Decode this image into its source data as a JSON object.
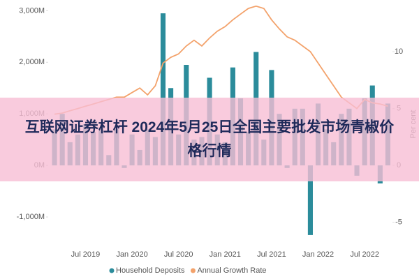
{
  "chart_data": {
    "type": "bar",
    "categories": [
      null,
      null,
      null,
      null,
      "Jul 2019",
      null,
      null,
      null,
      null,
      null,
      "Jan 2020",
      null,
      null,
      null,
      null,
      null,
      "Jul 2020",
      null,
      null,
      null,
      null,
      null,
      "Jan 2021",
      null,
      null,
      null,
      null,
      null,
      "Jul 2021",
      null,
      null,
      null,
      null,
      null,
      "Jan 2022",
      null,
      null,
      null,
      null,
      null,
      "Jul 2022",
      null,
      null,
      null
    ],
    "series": [
      {
        "name": "Household Deposits",
        "type": "bar",
        "color": "#2b8c9b",
        "values": [
          700,
          1000,
          450,
          600,
          800,
          650,
          700,
          200,
          700,
          -50,
          600,
          300,
          700,
          550,
          2950,
          1500,
          600,
          1950,
          500,
          550,
          1700,
          600,
          450,
          1900,
          1300,
          650,
          2200,
          500,
          1850,
          1000,
          -50,
          1100,
          1100,
          -1350,
          1200,
          700,
          450,
          1000,
          1100,
          -200,
          1300,
          1550,
          -350,
          1200
        ]
      },
      {
        "name": "Annual Growth Rate",
        "type": "line",
        "axis": "y2",
        "color": "#f3a26b",
        "values": [
          4.5,
          4.6,
          4.8,
          5.0,
          5.2,
          5.4,
          5.6,
          5.8,
          6.0,
          6.0,
          6.4,
          6.8,
          6.2,
          7.0,
          9.0,
          9.5,
          9.8,
          10.5,
          11.0,
          10.5,
          11.2,
          11.8,
          12.2,
          12.8,
          13.3,
          13.8,
          14.0,
          13.8,
          12.8,
          12.0,
          11.3,
          11.0,
          10.5,
          10.0,
          9.0,
          8.0,
          7.0,
          6.0,
          5.5,
          5.0,
          5.8,
          5.5,
          5.4,
          5.2
        ]
      }
    ],
    "ylim": [
      -1500,
      3100
    ],
    "yticks": [
      {
        "value": -1000,
        "label": "-1,000M"
      },
      {
        "value": 0,
        "label": "0M"
      },
      {
        "value": 1000,
        "label": "1,000M"
      },
      {
        "value": 2000,
        "label": "2,000M"
      },
      {
        "value": 3000,
        "label": "3,000M"
      }
    ],
    "y2lim": [
      -6.8,
      14.05
    ],
    "y2ticks": [
      -5,
      0,
      5,
      10
    ],
    "y2label": "Per cent",
    "legend": "bottom"
  },
  "overlay": {
    "text": "互联网证券杠杆 2024年5月25日全国主要批发市场青椒价格行情"
  }
}
